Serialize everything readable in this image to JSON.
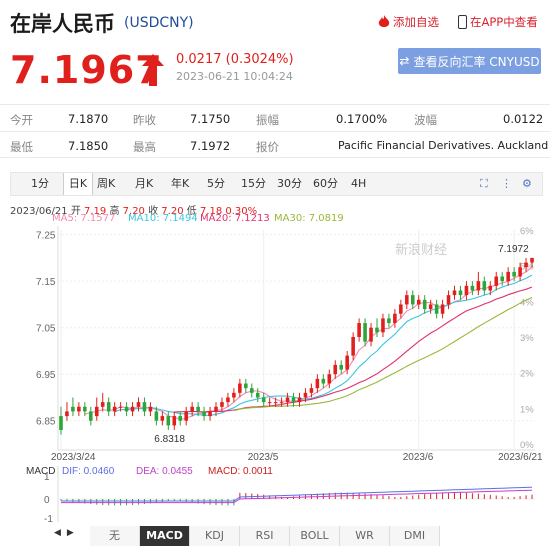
{
  "header": {
    "title": "在岸人民币",
    "code": "(USDCNY)",
    "add_watch": "添加自选",
    "app_view": "在APP中查看"
  },
  "quote": {
    "price": "7.1967",
    "change": "0.0217 (0.3024%)",
    "time": "2023-06-21 10:04:24",
    "reverse_btn": "查看反向汇率 CNYUSD"
  },
  "stats": {
    "open_label": "今开",
    "open": "7.1870",
    "prev_label": "昨收",
    "prev": "7.1750",
    "amp_label": "振幅",
    "amp": "0.1700%",
    "wave_label": "波幅",
    "wave": "0.0122",
    "low_label": "最低",
    "low": "7.1850",
    "high_label": "最高",
    "high": "7.1972",
    "quote_label": "报价",
    "quote_src": "Pacific Financial Derivatives. Auckland"
  },
  "period_tabs": [
    "1分",
    "日K",
    "周K",
    "月K",
    "年K",
    "5分",
    "15分",
    "30分",
    "60分",
    "4H"
  ],
  "active_period": "日K",
  "ohlc_line": {
    "date": "2023/06/21",
    "open_l": "开",
    "open": "7.19",
    "high_l": "高",
    "high": "7.20",
    "close_l": "收",
    "close": "7.20",
    "low_l": "低",
    "low": "7.18",
    "pct": "0.30%"
  },
  "ma_legend": {
    "ma5": "MA5: 7.1577",
    "ma10": "MA10: 7.1494",
    "ma20": "MA20: 7.1213",
    "ma30": "MA30: 7.0819"
  },
  "colors": {
    "up": "#e0201d",
    "down": "#2ca53a",
    "ma5": "#f28ab0",
    "ma10": "#3cc5e0",
    "ma20": "#e0306a",
    "ma30": "#9ab83a",
    "dif": "#5b6ee8",
    "dea": "#c040c8",
    "macd": "#c82020"
  },
  "chart_data": {
    "type": "candlestick",
    "ylim": [
      6.8,
      7.25
    ],
    "yticks": [
      "7.25",
      "7.15",
      "7.05",
      "6.95",
      "6.85"
    ],
    "pct_ticks": [
      "6%",
      "5%",
      "4%",
      "3%",
      "2%",
      "1%",
      "0%"
    ],
    "xticks": [
      "2023/3/24",
      "2023/5",
      "2023/6",
      "2023/6/21"
    ],
    "annotations": {
      "low": "6.8318",
      "high": "7.1972"
    },
    "watermark": "新浪财经",
    "candles": [
      [
        6.86,
        6.83,
        6.88,
        6.82
      ],
      [
        6.86,
        6.87,
        6.89,
        6.85
      ],
      [
        6.88,
        6.87,
        6.9,
        6.86
      ],
      [
        6.87,
        6.88,
        6.89,
        6.86
      ],
      [
        6.88,
        6.87,
        6.89,
        6.86
      ],
      [
        6.87,
        6.85,
        6.88,
        6.84
      ],
      [
        6.86,
        6.88,
        6.9,
        6.85
      ],
      [
        6.88,
        6.89,
        6.91,
        6.87
      ],
      [
        6.89,
        6.87,
        6.9,
        6.86
      ],
      [
        6.87,
        6.88,
        6.89,
        6.86
      ],
      [
        6.88,
        6.88,
        6.89,
        6.87
      ],
      [
        6.88,
        6.87,
        6.89,
        6.86
      ],
      [
        6.87,
        6.88,
        6.89,
        6.86
      ],
      [
        6.88,
        6.89,
        6.9,
        6.87
      ],
      [
        6.89,
        6.87,
        6.9,
        6.86
      ],
      [
        6.87,
        6.88,
        6.89,
        6.86
      ],
      [
        6.87,
        6.85,
        6.88,
        6.84
      ],
      [
        6.85,
        6.86,
        6.87,
        6.84
      ],
      [
        6.86,
        6.84,
        6.87,
        6.83
      ],
      [
        6.84,
        6.86,
        6.87,
        6.83
      ],
      [
        6.86,
        6.85,
        6.87,
        6.84
      ],
      [
        6.85,
        6.87,
        6.88,
        6.84
      ],
      [
        6.87,
        6.88,
        6.89,
        6.86
      ],
      [
        6.88,
        6.87,
        6.89,
        6.86
      ],
      [
        6.87,
        6.86,
        6.88,
        6.85
      ],
      [
        6.86,
        6.87,
        6.88,
        6.85
      ],
      [
        6.87,
        6.88,
        6.89,
        6.86
      ],
      [
        6.88,
        6.89,
        6.9,
        6.87
      ],
      [
        6.89,
        6.9,
        6.91,
        6.88
      ],
      [
        6.9,
        6.91,
        6.92,
        6.89
      ],
      [
        6.91,
        6.93,
        6.94,
        6.9
      ],
      [
        6.93,
        6.92,
        6.94,
        6.91
      ],
      [
        6.92,
        6.91,
        6.93,
        6.9
      ],
      [
        6.91,
        6.9,
        6.92,
        6.89
      ],
      [
        6.9,
        6.89,
        6.91,
        6.88
      ],
      [
        6.89,
        6.89,
        6.9,
        6.88
      ],
      [
        6.89,
        6.89,
        6.9,
        6.88
      ],
      [
        6.89,
        6.89,
        6.9,
        6.88
      ],
      [
        6.89,
        6.9,
        6.91,
        6.88
      ],
      [
        6.9,
        6.89,
        6.91,
        6.88
      ],
      [
        6.89,
        6.9,
        6.91,
        6.88
      ],
      [
        6.9,
        6.91,
        6.92,
        6.89
      ],
      [
        6.91,
        6.92,
        6.93,
        6.9
      ],
      [
        6.92,
        6.94,
        6.95,
        6.91
      ],
      [
        6.94,
        6.93,
        6.95,
        6.92
      ],
      [
        6.93,
        6.95,
        6.96,
        6.92
      ],
      [
        6.95,
        6.97,
        6.98,
        6.94
      ],
      [
        6.97,
        6.96,
        6.98,
        6.95
      ],
      [
        6.96,
        6.99,
        7.0,
        6.95
      ],
      [
        6.99,
        7.03,
        7.04,
        6.98
      ],
      [
        7.03,
        7.06,
        7.07,
        7.02
      ],
      [
        7.06,
        7.02,
        7.07,
        7.01
      ],
      [
        7.02,
        7.05,
        7.06,
        7.01
      ],
      [
        7.05,
        7.04,
        7.07,
        7.03
      ],
      [
        7.04,
        7.07,
        7.08,
        7.03
      ],
      [
        7.07,
        7.06,
        7.08,
        7.05
      ],
      [
        7.06,
        7.08,
        7.09,
        7.05
      ],
      [
        7.08,
        7.1,
        7.11,
        7.07
      ],
      [
        7.1,
        7.12,
        7.13,
        7.09
      ],
      [
        7.12,
        7.1,
        7.13,
        7.09
      ],
      [
        7.1,
        7.11,
        7.12,
        7.09
      ],
      [
        7.11,
        7.09,
        7.12,
        7.08
      ],
      [
        7.09,
        7.1,
        7.11,
        7.08
      ],
      [
        7.1,
        7.08,
        7.11,
        7.07
      ],
      [
        7.08,
        7.1,
        7.11,
        7.07
      ],
      [
        7.1,
        7.12,
        7.13,
        7.09
      ],
      [
        7.12,
        7.13,
        7.14,
        7.11
      ],
      [
        7.13,
        7.12,
        7.14,
        7.11
      ],
      [
        7.12,
        7.14,
        7.15,
        7.11
      ],
      [
        7.14,
        7.13,
        7.15,
        7.12
      ],
      [
        7.13,
        7.15,
        7.17,
        7.12
      ],
      [
        7.15,
        7.13,
        7.16,
        7.12
      ],
      [
        7.13,
        7.14,
        7.15,
        7.12
      ],
      [
        7.14,
        7.16,
        7.17,
        7.13
      ],
      [
        7.16,
        7.15,
        7.17,
        7.14
      ],
      [
        7.15,
        7.17,
        7.18,
        7.14
      ],
      [
        7.17,
        7.16,
        7.18,
        7.15
      ],
      [
        7.16,
        7.18,
        7.19,
        7.15
      ],
      [
        7.18,
        7.19,
        7.2,
        7.17
      ],
      [
        7.19,
        7.2,
        7.2,
        7.18
      ]
    ]
  },
  "macd": {
    "label": "MACD",
    "dif": "DIF: 0.0460",
    "dea": "DEA: 0.0455",
    "macd": "MACD: 0.0011",
    "ticks": [
      "1",
      "0",
      "-1"
    ]
  },
  "indicator_tabs": [
    "无",
    "MACD",
    "KDJ",
    "RSI",
    "BOLL",
    "WR",
    "DMI"
  ],
  "active_indicator": "MACD"
}
